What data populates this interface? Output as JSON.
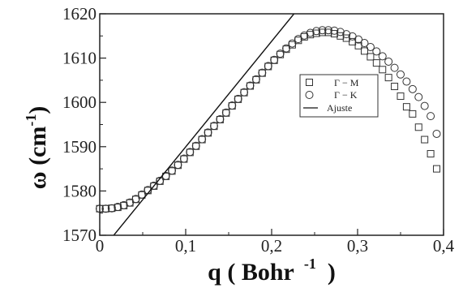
{
  "chart_data": {
    "type": "scatter",
    "xlim": [
      0,
      0.4
    ],
    "ylim": [
      1570,
      1620
    ],
    "x_ticks": [
      "0",
      "0,1",
      "0,2",
      "0,3",
      "0,4"
    ],
    "y_ticks": [
      "1570",
      "1580",
      "1590",
      "1600",
      "1610",
      "1620"
    ],
    "xlabel": {
      "main": "q ( Bohr",
      "sup": "-1",
      "close": ")"
    },
    "ylabel": {
      "main": "ω  (cm",
      "sup": "-1",
      "close": ")"
    },
    "grid": false,
    "legend_position": "upper-right-inset",
    "series": [
      {
        "name": "Γ − M",
        "marker": "square",
        "x": [
          0.0,
          0.007,
          0.014,
          0.021,
          0.028,
          0.035,
          0.042,
          0.049,
          0.056,
          0.063,
          0.07,
          0.077,
          0.084,
          0.091,
          0.098,
          0.105,
          0.112,
          0.119,
          0.126,
          0.133,
          0.14,
          0.147,
          0.154,
          0.161,
          0.168,
          0.175,
          0.182,
          0.189,
          0.196,
          0.203,
          0.21,
          0.217,
          0.224,
          0.231,
          0.238,
          0.245,
          0.252,
          0.259,
          0.266,
          0.273,
          0.28,
          0.287,
          0.294,
          0.301,
          0.308,
          0.315,
          0.322,
          0.329,
          0.336,
          0.343,
          0.35,
          0.357,
          0.364,
          0.371,
          0.378,
          0.385,
          0.392
        ],
        "y": [
          1576.0,
          1576.0,
          1576.1,
          1576.3,
          1576.7,
          1577.3,
          1578.1,
          1579.1,
          1580.1,
          1581.1,
          1582.2,
          1583.3,
          1584.5,
          1585.8,
          1587.2,
          1588.7,
          1590.1,
          1591.6,
          1593.1,
          1594.6,
          1596.1,
          1597.6,
          1599.2,
          1600.7,
          1602.2,
          1603.7,
          1605.1,
          1606.6,
          1608.1,
          1609.5,
          1610.8,
          1612.0,
          1613.0,
          1614.0,
          1614.8,
          1615.3,
          1615.6,
          1615.8,
          1615.8,
          1615.5,
          1615.0,
          1614.5,
          1613.7,
          1612.8,
          1611.6,
          1610.3,
          1608.9,
          1607.4,
          1605.6,
          1603.6,
          1601.4,
          1599.0,
          1597.4,
          1594.4,
          1591.6,
          1588.4,
          1585.0
        ]
      },
      {
        "name": "Γ − K",
        "marker": "circle",
        "x": [
          0.0,
          0.007,
          0.014,
          0.021,
          0.028,
          0.035,
          0.042,
          0.049,
          0.056,
          0.063,
          0.07,
          0.077,
          0.084,
          0.091,
          0.098,
          0.105,
          0.112,
          0.119,
          0.126,
          0.133,
          0.14,
          0.147,
          0.154,
          0.161,
          0.168,
          0.175,
          0.182,
          0.189,
          0.196,
          0.203,
          0.21,
          0.217,
          0.224,
          0.231,
          0.238,
          0.245,
          0.252,
          0.259,
          0.266,
          0.273,
          0.28,
          0.287,
          0.294,
          0.301,
          0.308,
          0.315,
          0.322,
          0.329,
          0.336,
          0.343,
          0.35,
          0.357,
          0.364,
          0.371,
          0.378,
          0.385,
          0.392
        ],
        "y": [
          1576.0,
          1576.0,
          1576.1,
          1576.4,
          1576.8,
          1577.4,
          1578.2,
          1579.2,
          1580.2,
          1581.2,
          1582.3,
          1583.4,
          1584.6,
          1585.9,
          1587.3,
          1588.8,
          1590.2,
          1591.7,
          1593.2,
          1594.7,
          1596.2,
          1597.7,
          1599.3,
          1600.8,
          1602.3,
          1603.8,
          1605.2,
          1606.7,
          1608.2,
          1609.6,
          1611.0,
          1612.2,
          1613.3,
          1614.3,
          1615.1,
          1615.7,
          1616.1,
          1616.3,
          1616.3,
          1616.2,
          1615.9,
          1615.4,
          1614.9,
          1614.2,
          1613.4,
          1612.5,
          1611.5,
          1610.4,
          1609.2,
          1607.8,
          1606.3,
          1604.7,
          1603.0,
          1601.2,
          1599.2,
          1596.9,
          1592.9
        ]
      },
      {
        "name": "Ajuste",
        "marker": "line",
        "x": [
          0.0163,
          0.226
        ],
        "y": [
          1570,
          1620
        ]
      }
    ]
  }
}
